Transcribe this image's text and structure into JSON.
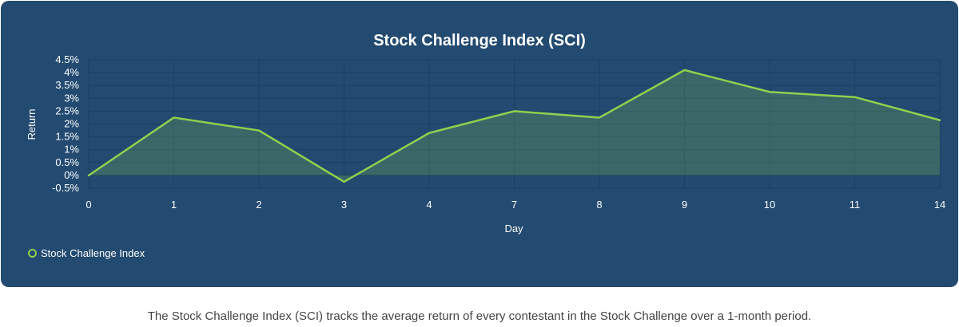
{
  "chart_data": {
    "type": "area",
    "title": "Stock Challenge Index (SCI)",
    "xlabel": "Day",
    "ylabel": "Return",
    "categories": [
      "0",
      "1",
      "2",
      "3",
      "4",
      "7",
      "8",
      "9",
      "10",
      "11",
      "14"
    ],
    "series": [
      {
        "name": "Stock Challenge Index",
        "values": [
          0,
          2.25,
          1.75,
          -0.25,
          1.65,
          2.5,
          2.25,
          4.1,
          3.25,
          3.05,
          2.15
        ]
      }
    ],
    "y_ticks": [
      "-0.5%",
      "0%",
      "0.5%",
      "1%",
      "1.5%",
      "2%",
      "2.5%",
      "3%",
      "3.5%",
      "4%",
      "4.5%"
    ],
    "ylim": [
      -0.5,
      4.5
    ],
    "grid": true,
    "legend_position": "bottom-left",
    "colors": {
      "line": "#8fd14f",
      "background": "#234a70"
    }
  },
  "caption": "The Stock Challenge Index (SCI) tracks the average return of every contestant in the Stock Challenge over a 1-month period."
}
